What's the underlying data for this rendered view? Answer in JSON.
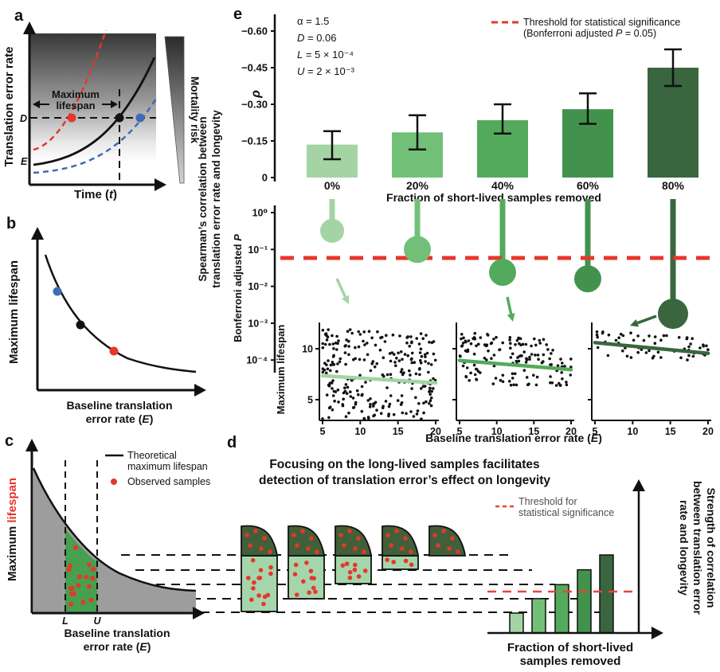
{
  "colors": {
    "palette_greens": [
      "#a4d4a3",
      "#72c078",
      "#54aa5c",
      "#42924d",
      "#39663f"
    ],
    "red": "#e8362b",
    "red_light": "#ef4338",
    "blue": "#3e6bb4",
    "gray_fill": "#9d9d9d",
    "green_band": "#46a04f",
    "d_dark_green": "#41603a",
    "d_light_green": "#a5d6ab",
    "black": "#111111"
  },
  "panel_a": {
    "label": "a",
    "y_label": "Translation error rate",
    "x_label": {
      "pre": "Time (",
      "it": "t",
      "post": ")"
    },
    "annot_line1": "Maximum",
    "annot_line2": "lifespan",
    "d_tick": "D",
    "e_tick": "E",
    "side_label": "Mortality risk"
  },
  "panel_b": {
    "label": "b",
    "y_label": "Maximum lifespan",
    "x_label_line1": "Baseline translation",
    "x_label_line2": {
      "pre": "error rate (",
      "it": "E",
      "post": ")"
    }
  },
  "panel_c": {
    "label": "c",
    "y_label_black": "Maximum ",
    "y_label_red": "lifespan",
    "x_label_line1": "Baseline translation",
    "x_label_line2": {
      "pre": "error rate (",
      "it": "E",
      "post": ")"
    },
    "legend_line_label1": "Theoretical",
    "legend_line_label2": "maximum lifespan",
    "legend_dot_label": "Observed samples",
    "l_tick": "L",
    "u_tick": "U"
  },
  "panel_d": {
    "label": "d",
    "title_line1": "Focusing on the long-lived samples facilitates",
    "title_line2": "detection of translation error’s effect on longevity",
    "legend_line1": "Threshold for",
    "legend_line2": "statistical significance",
    "x_label_line1": "Fraction of short-lived",
    "x_label_line2": "samples removed",
    "side_label_lines": [
      "Strength of correlation",
      "between translation error",
      "rate and longevity"
    ]
  },
  "panel_e": {
    "label": "e",
    "params": [
      {
        "it": "",
        "rest": "α = 1.5"
      },
      {
        "it": "D",
        "rest": " = 0.06"
      },
      {
        "it": "L",
        "rest": " = 5 × 10⁻⁴"
      },
      {
        "it": "U",
        "rest": " = 2 × 10⁻³"
      }
    ],
    "legend_line1": "Threshold for statistical significance",
    "legend_line2": {
      "pre": "(Bonferroni adjusted ",
      "it": "P",
      "post": " = 0.05)"
    },
    "rho_label": "ρ",
    "spearman_label_line1": "Spearman’s correlation between",
    "spearman_label_line2": "translation error rate and longevity",
    "bonferroni_label": {
      "pre": "Bonferroni adjusted ",
      "it": "P"
    },
    "bar_x_title": "Fraction of short-lived samples removed",
    "scatter_y_label": "Maximum lifespan",
    "scatter_x_label": {
      "pre": "Baseline translation error rate (",
      "it": "E",
      "post": ")"
    }
  },
  "chart_data": [
    {
      "id": "e_correlation_bars",
      "type": "bar",
      "categories": [
        "0%",
        "20%",
        "40%",
        "60%",
        "80%"
      ],
      "values": [
        -0.135,
        -0.185,
        -0.235,
        -0.28,
        -0.45
      ],
      "ci_low": [
        -0.075,
        -0.115,
        -0.18,
        -0.22,
        -0.375
      ],
      "ci_high": [
        -0.19,
        -0.255,
        -0.3,
        -0.345,
        -0.525
      ],
      "ylabel": "Spearman's correlation ρ",
      "yticks": [
        0,
        -0.15,
        -0.3,
        -0.45,
        -0.6
      ],
      "ylim": [
        0,
        -0.6
      ],
      "xlabel": "Fraction of short-lived samples removed",
      "legend": "Threshold for statistical significance (Bonferroni adjusted P = 0.05)"
    },
    {
      "id": "e_pvalues_lollipop",
      "type": "lollipop",
      "categories": [
        "0%",
        "20%",
        "40%",
        "60%",
        "80%"
      ],
      "values": [
        0.32,
        0.1,
        0.024,
        0.016,
        0.0018
      ],
      "yscale": "log",
      "ytick_labels": [
        "10⁰",
        "10⁻¹",
        "10⁻²",
        "10⁻³",
        "10⁻⁴"
      ],
      "ylim": [
        1,
        0.0001
      ],
      "threshold": 0.05,
      "ylabel": "Bonferroni adjusted P"
    },
    {
      "id": "e_scatter_removed_0pct",
      "type": "scatter",
      "n_points": 260,
      "x_range": [
        5,
        20
      ],
      "y_range": [
        3.1,
        12.5
      ],
      "trend": {
        "x": [
          5,
          20
        ],
        "y": [
          7.35,
          6.65
        ]
      },
      "xticks": [
        5,
        10,
        15,
        20
      ],
      "yticks": [
        5,
        10
      ],
      "xlabel": "Baseline translation error rate (E)",
      "ylabel": "Maximum lifespan"
    },
    {
      "id": "e_scatter_removed_40pct",
      "type": "scatter",
      "n_points": 155,
      "x_range": [
        5,
        20
      ],
      "y_range": [
        6.4,
        12.4
      ],
      "trend": {
        "x": [
          5,
          20
        ],
        "y": [
          8.85,
          7.95
        ]
      },
      "xticks": [
        5,
        10,
        15,
        20
      ],
      "yticks": [
        5,
        10
      ],
      "xlabel": "Baseline translation error rate (E)",
      "ylabel": "Maximum lifespan"
    },
    {
      "id": "e_scatter_removed_80pct",
      "type": "scatter",
      "n_points": 60,
      "x_range": [
        5,
        20
      ],
      "y_range": [
        8.9,
        12.3
      ],
      "trend": {
        "x": [
          5,
          20
        ],
        "y": [
          10.6,
          9.55
        ]
      },
      "xticks": [
        5,
        10,
        15,
        20
      ],
      "yticks": [
        5,
        10
      ],
      "xlabel": "Baseline translation error rate (E)",
      "ylabel": "Maximum lifespan"
    },
    {
      "id": "d_strength_bars",
      "type": "bar",
      "values_rel": [
        0.255,
        0.44,
        0.62,
        0.81,
        1.0
      ],
      "threshold_rel": 0.53,
      "xlabel": "Fraction of short-lived samples removed",
      "ylabel": "Strength of correlation between translation error rate and longevity"
    }
  ]
}
